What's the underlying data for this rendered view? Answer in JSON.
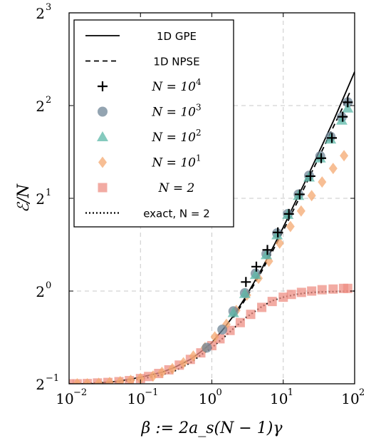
{
  "chart_data": {
    "type": "scatter",
    "xscale": "log10",
    "yscale": "log2",
    "xlim": [
      0.01,
      100
    ],
    "ylim": [
      0.5,
      8
    ],
    "xlabel": "β := 2a_s(N − 1)γ",
    "ylabel": "ℰ/N",
    "grid": true,
    "legend_position": "top-left",
    "x_ticks": [
      {
        "value": 0.01,
        "base": "10",
        "exp": "−2"
      },
      {
        "value": 0.1,
        "base": "10",
        "exp": "−1"
      },
      {
        "value": 1,
        "base": "10",
        "exp": "0"
      },
      {
        "value": 10,
        "base": "10",
        "exp": "1"
      },
      {
        "value": 100,
        "base": "10",
        "exp": "2"
      }
    ],
    "y_ticks": [
      {
        "value": 0.5,
        "base": "2",
        "exp": "−1"
      },
      {
        "value": 1,
        "base": "2",
        "exp": "0"
      },
      {
        "value": 2,
        "base": "2",
        "exp": "1"
      },
      {
        "value": 4,
        "base": "2",
        "exp": "2"
      },
      {
        "value": 8,
        "base": "2",
        "exp": "3"
      }
    ],
    "series": [
      {
        "name": "1D GPE",
        "kind": "line",
        "style": "solid",
        "color": "#000000",
        "x": [
          0.01,
          0.02,
          0.05,
          0.1,
          0.2,
          0.3,
          0.5,
          0.7,
          1,
          1.5,
          2,
          3,
          5,
          7,
          10,
          15,
          20,
          30,
          50,
          70,
          100
        ],
        "y": [
          0.5,
          0.5,
          0.51,
          0.525,
          0.545,
          0.565,
          0.6,
          0.635,
          0.68,
          0.76,
          0.83,
          0.96,
          1.18,
          1.37,
          1.61,
          1.96,
          2.25,
          2.75,
          3.55,
          4.25,
          5.15
        ]
      },
      {
        "name": "1D NPSE",
        "kind": "line",
        "style": "dashed",
        "color": "#000000",
        "x": [
          2,
          3,
          5,
          7,
          10,
          15,
          20,
          30,
          50,
          70,
          85
        ],
        "y": [
          0.82,
          0.945,
          1.16,
          1.34,
          1.57,
          1.9,
          2.18,
          2.65,
          3.4,
          4.0,
          4.4
        ]
      },
      {
        "name": "N = 10^4",
        "kind": "markers",
        "marker": "plus",
        "color": "#000000",
        "x": [
          3,
          4.2,
          6,
          8.4,
          12,
          17,
          24,
          34,
          48,
          68,
          80
        ],
        "y": [
          1.07,
          1.2,
          1.36,
          1.55,
          1.78,
          2.06,
          2.36,
          2.7,
          3.14,
          3.68,
          4.1
        ]
      },
      {
        "name": "N = 10^3",
        "kind": "markers",
        "marker": "circle",
        "color": "#6f8597",
        "x": [
          0.85,
          1.4,
          2,
          2.9,
          4.1,
          5.8,
          8.2,
          11.6,
          16.4,
          23,
          33,
          46,
          66,
          80
        ],
        "y": [
          0.655,
          0.75,
          0.86,
          0.985,
          1.14,
          1.32,
          1.54,
          1.78,
          2.06,
          2.37,
          2.74,
          3.17,
          3.67,
          4.1
        ]
      },
      {
        "name": "N = 10^2",
        "kind": "markers",
        "marker": "triangle",
        "color": "#5cb8a8",
        "x": [
          2,
          2.9,
          4.1,
          5.8,
          8.2,
          11.6,
          16.4,
          23,
          33,
          46,
          66,
          80
        ],
        "y": [
          0.85,
          0.98,
          1.13,
          1.31,
          1.52,
          1.77,
          2.04,
          2.34,
          2.7,
          3.11,
          3.58,
          3.92
        ]
      },
      {
        "name": "N = 10^1",
        "kind": "markers",
        "marker": "diamond",
        "color": "#f4a870",
        "x": [
          0.013,
          0.018,
          0.026,
          0.037,
          0.052,
          0.073,
          0.1,
          0.15,
          0.2,
          0.28,
          0.4,
          0.55,
          0.8,
          1.1,
          1.6,
          2.2,
          3.1,
          4.5,
          6.3,
          8.9,
          12.6,
          17.8,
          25,
          35,
          50,
          71
        ],
        "y": [
          0.5,
          0.5,
          0.502,
          0.505,
          0.508,
          0.513,
          0.52,
          0.53,
          0.545,
          0.56,
          0.585,
          0.615,
          0.655,
          0.71,
          0.78,
          0.865,
          0.97,
          1.1,
          1.25,
          1.43,
          1.62,
          1.82,
          2.04,
          2.26,
          2.5,
          2.75
        ]
      },
      {
        "name": "N = 2",
        "kind": "markers",
        "marker": "square",
        "color": "#ee8f84",
        "x": [
          0.01,
          0.013,
          0.018,
          0.025,
          0.035,
          0.05,
          0.07,
          0.1,
          0.13,
          0.18,
          0.25,
          0.35,
          0.5,
          0.7,
          1,
          1.3,
          1.8,
          2.5,
          3.5,
          5,
          7,
          10,
          13,
          18,
          25,
          35,
          50,
          70,
          80
        ],
        "y": [
          0.5,
          0.5,
          0.501,
          0.503,
          0.505,
          0.508,
          0.512,
          0.52,
          0.528,
          0.54,
          0.555,
          0.575,
          0.6,
          0.63,
          0.665,
          0.7,
          0.745,
          0.79,
          0.84,
          0.885,
          0.925,
          0.955,
          0.975,
          0.99,
          1.0,
          1.01,
          1.015,
          1.02,
          1.02
        ]
      },
      {
        "name": "exact, N = 2",
        "kind": "line",
        "style": "dotted",
        "color": "#000000",
        "x": [
          0.01,
          0.02,
          0.05,
          0.1,
          0.2,
          0.3,
          0.5,
          0.7,
          1,
          1.5,
          2,
          3,
          5,
          7,
          10,
          15,
          20,
          30,
          50,
          70,
          100
        ],
        "y": [
          0.5,
          0.502,
          0.508,
          0.518,
          0.535,
          0.55,
          0.585,
          0.62,
          0.655,
          0.71,
          0.755,
          0.82,
          0.89,
          0.93,
          0.955,
          0.975,
          0.985,
          0.992,
          0.996,
          0.998,
          1.0
        ]
      }
    ]
  },
  "legend": [
    {
      "key": "gpe",
      "label": "1D GPE",
      "math": false
    },
    {
      "key": "npse",
      "label": "1D NPSE",
      "math": false
    },
    {
      "key": "n4",
      "label": "N = 10",
      "sup": "4",
      "math": true
    },
    {
      "key": "n3",
      "label": "N = 10",
      "sup": "3",
      "math": true
    },
    {
      "key": "n2",
      "label": "N = 10",
      "sup": "2",
      "math": true
    },
    {
      "key": "n1",
      "label": "N = 10",
      "sup": "1",
      "math": true
    },
    {
      "key": "n2b",
      "label": "N = 2",
      "math": true
    },
    {
      "key": "exact",
      "label": "exact, N = 2",
      "math": false
    }
  ]
}
